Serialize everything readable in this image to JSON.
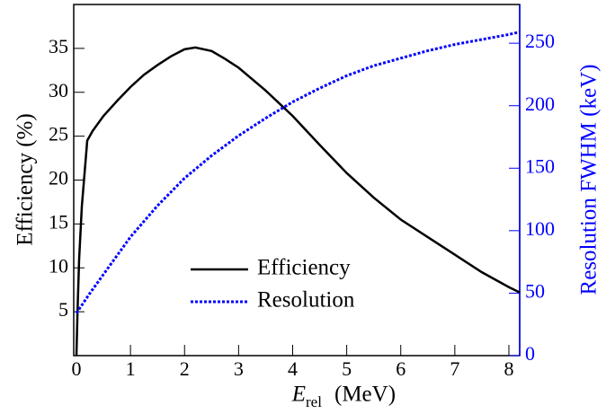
{
  "chart_data": {
    "type": "line",
    "xlabel": "E",
    "xlabel_subscript": "rel",
    "xlabel_unit": "(MeV)",
    "ylabel": "Efficiency (%)",
    "y2label": "Resolution FWHM (keV)",
    "xlim": [
      -0.05,
      8.2
    ],
    "xticks": [
      0,
      1,
      2,
      3,
      4,
      5,
      6,
      7,
      8
    ],
    "ylim": [
      0,
      40
    ],
    "yticks": [
      5,
      10,
      15,
      20,
      25,
      30,
      35
    ],
    "y2lim": [
      0,
      281
    ],
    "y2ticks": [
      0,
      50,
      100,
      150,
      200,
      250
    ],
    "y2color": "#0000ff",
    "series": [
      {
        "name": "Efficiency",
        "color": "#000000",
        "line_style": "solid",
        "x": [
          0,
          0.02,
          0.05,
          0.1,
          0.2,
          0.3,
          0.5,
          0.75,
          1,
          1.25,
          1.5,
          1.75,
          2,
          2.2,
          2.5,
          2.75,
          3,
          3.5,
          4,
          4.5,
          5,
          5.5,
          6,
          6.5,
          7,
          7.5,
          8,
          8.2
        ],
        "values": [
          0,
          5,
          11,
          17,
          24.5,
          25.6,
          27.3,
          29,
          30.6,
          32,
          33.1,
          34.1,
          34.9,
          35.1,
          34.7,
          33.8,
          32.8,
          30.2,
          27.3,
          24,
          20.8,
          18,
          15.5,
          13.5,
          11.5,
          9.5,
          7.8,
          7.2
        ]
      },
      {
        "name": "Resolution",
        "color": "#0000ff",
        "line_style": "dotted",
        "axis": "y2",
        "x": [
          0,
          0.25,
          0.5,
          1,
          1.5,
          2,
          2.5,
          3,
          3.5,
          4,
          4.5,
          5,
          5.5,
          6,
          6.5,
          7,
          7.5,
          8,
          8.2
        ],
        "values": [
          34,
          50,
          65,
          95,
          120,
          142,
          160,
          176,
          190,
          203,
          214,
          224,
          232,
          238,
          244,
          249,
          253,
          257,
          259
        ]
      }
    ]
  }
}
